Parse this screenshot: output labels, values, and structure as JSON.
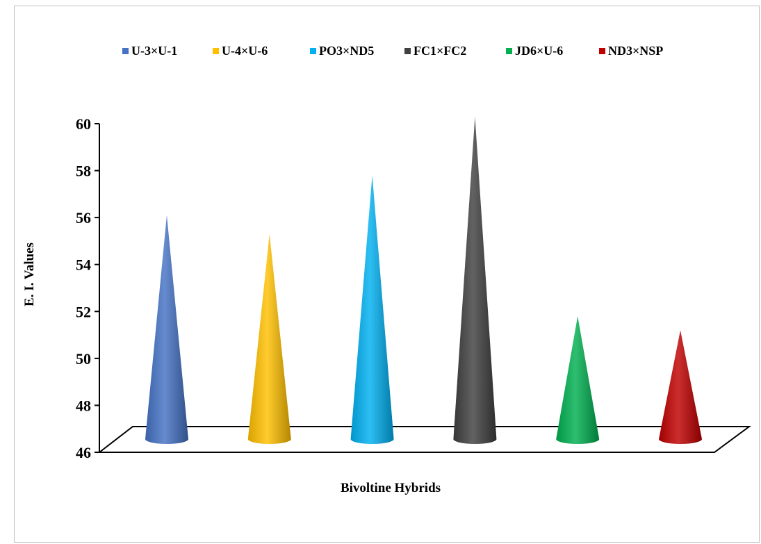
{
  "chart_data": {
    "type": "bar",
    "shape": "cone",
    "title": "",
    "xlabel": "Bivoltine Hybrids",
    "ylabel": "E. I. Values",
    "ylim": [
      46,
      60
    ],
    "yticks": [
      46,
      48,
      50,
      52,
      54,
      56,
      58,
      60
    ],
    "grid": false,
    "legend_position": "top",
    "series": [
      {
        "name": "U-3×U-1",
        "value": 56.1,
        "color": "#4472C4"
      },
      {
        "name": "U-4×U-6",
        "value": 55.3,
        "color": "#FFC000"
      },
      {
        "name": "PO3×ND5",
        "value": 57.8,
        "color": "#00B0F0"
      },
      {
        "name": "FC1×FC2",
        "value": 60.3,
        "color": "#404040"
      },
      {
        "name": "JD6×U-6",
        "value": 51.8,
        "color": "#00B050"
      },
      {
        "name": "ND3×NSP",
        "value": 51.2,
        "color": "#C00000"
      }
    ]
  }
}
